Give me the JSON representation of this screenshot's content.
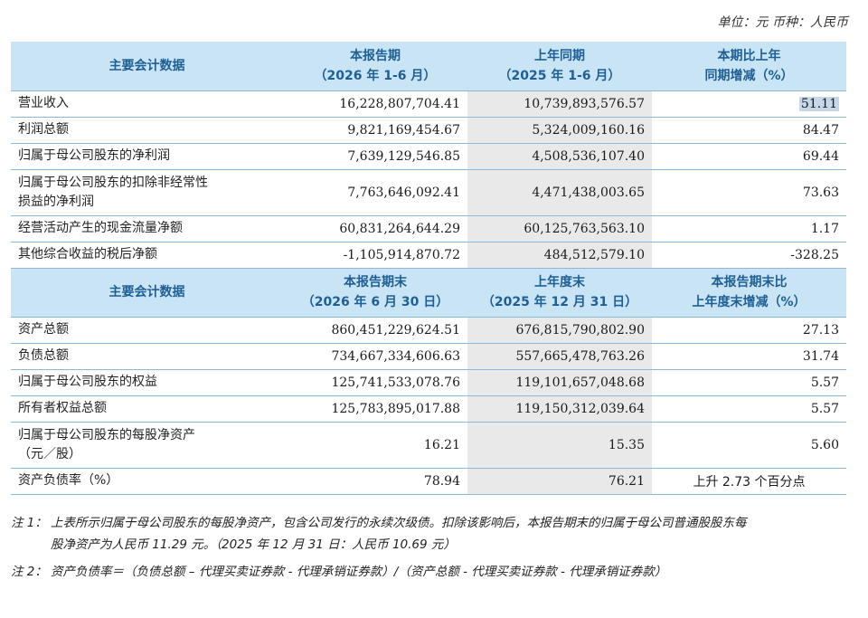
{
  "unit_line": "单位：元  币种：人民币",
  "section1": {
    "header": {
      "label": "主要会计数据",
      "col1_line1": "本报告期",
      "col1_line2": "（2026 年 1-6 月）",
      "col2_line1": "上年同期",
      "col2_line2": "（2025 年 1-6 月）",
      "col3_line1": "本期比上年",
      "col3_line2": "同期增减（%）"
    },
    "rows": [
      {
        "label": "营业收入",
        "current": "16,228,807,704.41",
        "previous": "10,739,893,576.57",
        "change": "51.11"
      },
      {
        "label": "利润总额",
        "current": "9,821,169,454.67",
        "previous": "5,324,009,160.16",
        "change": "84.47"
      },
      {
        "label": "归属于母公司股东的净利润",
        "current": "7,639,129,546.85",
        "previous": "4,508,536,107.40",
        "change": "69.44"
      },
      {
        "label_line1": "归属于母公司股东的扣除非经常性",
        "label_line2": "损益的净利润",
        "current": "7,763,646,092.41",
        "previous": "4,471,438,003.65",
        "change": "73.63"
      },
      {
        "label": "经营活动产生的现金流量净额",
        "current": "60,831,264,644.29",
        "previous": "60,125,763,563.10",
        "change": "1.17"
      },
      {
        "label": "其他综合收益的税后净额",
        "current": "-1,105,914,870.72",
        "previous": "484,512,579.10",
        "change": "-328.25"
      }
    ]
  },
  "section2": {
    "header": {
      "label": "主要会计数据",
      "col1_line1": "本报告期末",
      "col1_line2": "（2026 年 6 月 30 日）",
      "col2_line1": "上年度末",
      "col2_line2": "（2025 年 12 月 31 日）",
      "col3_line1": "本报告期末比",
      "col3_line2": "上年度末增减（%）"
    },
    "rows": [
      {
        "label": "资产总额",
        "current": "860,451,229,624.51",
        "previous": "676,815,790,802.90",
        "change": "27.13"
      },
      {
        "label": "负债总额",
        "current": "734,667,334,606.63",
        "previous": "557,665,478,763.26",
        "change": "31.74"
      },
      {
        "label": "归属于母公司股东的权益",
        "current": "125,741,533,078.76",
        "previous": "119,101,657,048.68",
        "change": "5.57"
      },
      {
        "label": "所有者权益总额",
        "current": "125,783,895,017.88",
        "previous": "119,150,312,039.64",
        "change": "5.57"
      },
      {
        "label_line1": "归属于母公司股东的每股净资产",
        "label_line2": "（元／股）",
        "current": "16.21",
        "previous": "15.35",
        "change": "5.60"
      },
      {
        "label": "资产负债率（%）",
        "current": "78.94",
        "previous": "76.21",
        "change": "上升 2.73 个百分点"
      }
    ]
  },
  "notes": {
    "note1_tag": "注 1：",
    "note1_line1": "上表所示归属于母公司股东的每股净资产，包含公司发行的永续次级债。扣除该影响后，本报告期末的归属于母公司普通股股东每",
    "note1_line2": "股净资产为人民币 11.29 元。（2025 年 12 月 31 日：人民币 10.69 元）",
    "note2_tag": "注 2：",
    "note2_text": "资产负债率＝（负债总额 – 代理买卖证券款 - 代理承销证券款）/（资产总额 - 代理买卖证券款 - 代理承销证券款）"
  },
  "colors": {
    "header_bg": "#c9e4f5",
    "header_text": "#1e5f95",
    "prev_col_bg": "#e9e9e9",
    "highlight": "#c7d7ea"
  }
}
